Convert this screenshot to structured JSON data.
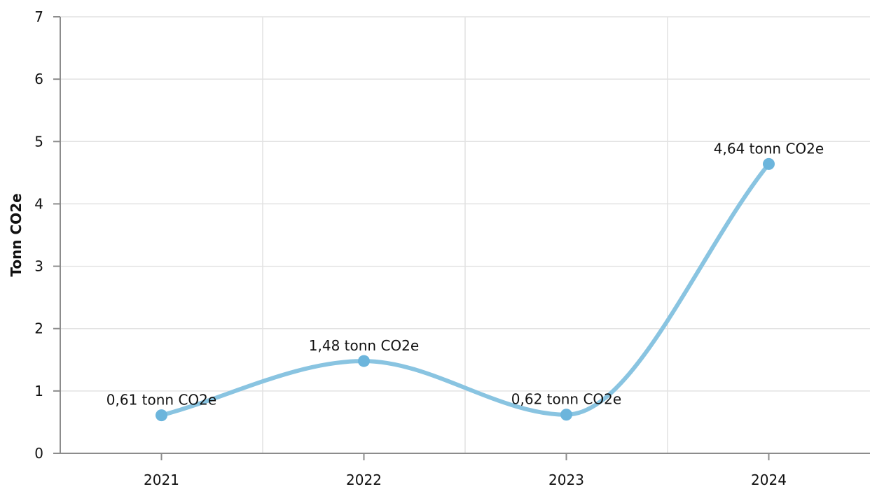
{
  "chart_data": {
    "type": "line",
    "title": "",
    "xlabel": "",
    "ylabel": "Tonn CO2e",
    "categories": [
      "2021",
      "2022",
      "2023",
      "2024"
    ],
    "series": [
      {
        "values": [
          0.61,
          1.48,
          0.62,
          4.64
        ],
        "labels": [
          "0,61 tonn CO2e",
          "1,48 tonn CO2e",
          "0,62 tonn CO2e",
          "4,64 tonn CO2e"
        ],
        "color": "#89c4e1",
        "point_color": "#6cb5dc"
      }
    ],
    "ylim": [
      0,
      7
    ],
    "yticks": [
      0,
      1,
      2,
      3,
      4,
      5,
      6,
      7
    ],
    "grid": true,
    "legend": "none",
    "curve": "smooth"
  }
}
